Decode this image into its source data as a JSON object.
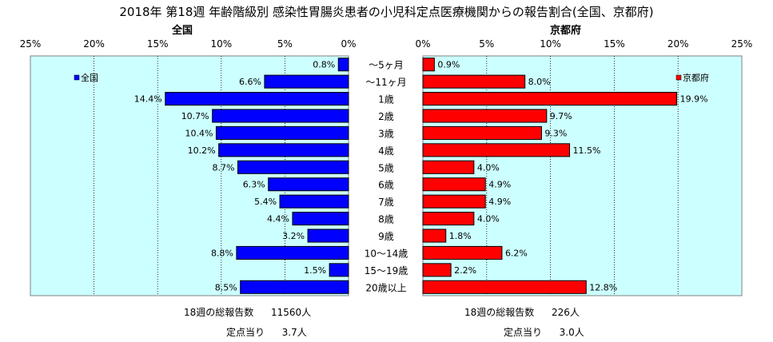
{
  "title": "2018年 第18週 年齢階級別 感染性胃腸炎患者の小児科定点医療機関からの報告割合(全国、京都府)",
  "colors": {
    "plot_bg": "#ccffff",
    "grid": "#000000",
    "national_bar": "#0000ff",
    "kyoto_bar": "#ff0000",
    "outline": "#000000"
  },
  "chart_data": {
    "type": "bar",
    "orientation": "horizontal",
    "categories": [
      "～5ヶ月",
      "～11ヶ月",
      "1歳",
      "2歳",
      "3歳",
      "4歳",
      "5歳",
      "6歳",
      "7歳",
      "8歳",
      "9歳",
      "10～14歳",
      "15～19歳",
      "20歳以上"
    ],
    "panels": [
      {
        "id": "national",
        "panel_title": "全国",
        "legend": "全国",
        "legend_position": "top-left",
        "direction": "left",
        "xlim": [
          0,
          25
        ],
        "ticks": [
          "25%",
          "20%",
          "15%",
          "10%",
          "5%",
          "0%"
        ],
        "values": [
          0.8,
          6.6,
          14.4,
          10.7,
          10.4,
          10.2,
          8.7,
          6.3,
          5.4,
          4.4,
          3.2,
          8.8,
          1.5,
          8.5
        ],
        "value_labels": [
          "0.8%",
          "6.6%",
          "14.4%",
          "10.7%",
          "10.4%",
          "10.2%",
          "8.7%",
          "6.3%",
          "5.4%",
          "4.4%",
          "3.2%",
          "8.8%",
          "1.5%",
          "8.5%"
        ],
        "footer": {
          "total_label": "18週の総報告数",
          "total_value": "11560人",
          "per_label": "定点当り",
          "per_value": "3.7人"
        }
      },
      {
        "id": "kyoto",
        "panel_title": "京都府",
        "legend": "京都府",
        "legend_position": "top-right",
        "direction": "right",
        "xlim": [
          0,
          25
        ],
        "ticks": [
          "0%",
          "5%",
          "10%",
          "15%",
          "20%",
          "25%"
        ],
        "values": [
          0.9,
          8.0,
          19.9,
          9.7,
          9.3,
          11.5,
          4.0,
          4.9,
          4.9,
          4.0,
          1.8,
          6.2,
          2.2,
          12.8
        ],
        "value_labels": [
          "0.9%",
          "8.0%",
          "19.9%",
          "9.7%",
          "9.3%",
          "11.5%",
          "4.0%",
          "4.9%",
          "4.9%",
          "4.0%",
          "1.8%",
          "6.2%",
          "2.2%",
          "12.8%"
        ],
        "footer": {
          "total_label": "18週の総報告数",
          "total_value": "226人",
          "per_label": "定点当り",
          "per_value": "3.0人"
        }
      }
    ]
  }
}
